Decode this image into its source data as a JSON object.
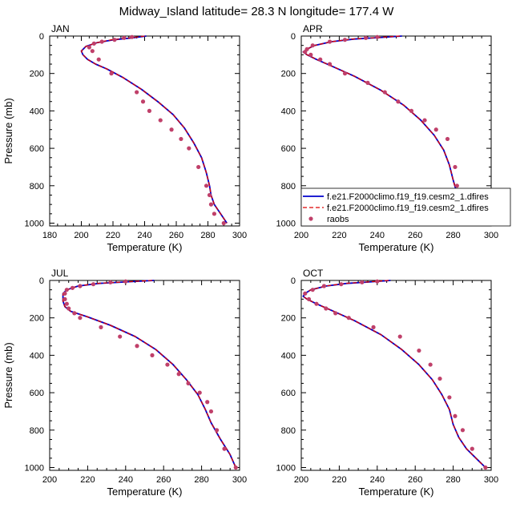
{
  "title": "Midway_Island  latitude= 28.3 N longitude= 177.4 W",
  "legend": {
    "entries": [
      {
        "label": "f.e21.F2000climo.f19_f19.cesm2_1.dfires",
        "color": "#0000cc",
        "style": "solid"
      },
      {
        "label": "f.e21.F2000climo.f19_f19.cesm2_1.dfires",
        "color": "#dd0000",
        "style": "dashed"
      },
      {
        "label": "raobs",
        "color": "#c0406a",
        "style": "marker"
      }
    ]
  },
  "chart_data": [
    {
      "type": "line",
      "panel": "JAN",
      "xlabel": "Temperature (K)",
      "ylabel": "Pressure (mb)",
      "xlim": [
        180,
        300
      ],
      "ylim": [
        1015,
        0
      ],
      "xticks": [
        180,
        200,
        220,
        240,
        260,
        280,
        300
      ],
      "yticks": [
        0,
        200,
        400,
        600,
        800,
        1000
      ],
      "series": [
        {
          "name": "f.e21.F2000climo.f19_f19.cesm2_1.dfires",
          "color": "#0000cc",
          "style": "solid",
          "x": [
            241,
            232,
            220,
            210,
            203,
            200,
            201,
            204,
            209,
            216,
            226,
            238,
            249,
            258,
            265,
            271,
            276,
            279,
            281,
            282,
            284,
            288,
            292
          ],
          "y": [
            0,
            10,
            20,
            35,
            55,
            80,
            100,
            125,
            150,
            175,
            220,
            285,
            355,
            420,
            490,
            570,
            650,
            730,
            800,
            850,
            900,
            950,
            1000
          ]
        },
        {
          "name": "f.e21.F2000climo.f19_f19.cesm2_1.dfires",
          "color": "#dd0000",
          "style": "dashed",
          "x": [
            240,
            231,
            219,
            210,
            203,
            200,
            201,
            204,
            209,
            216,
            226,
            238,
            249,
            258,
            265,
            271,
            276,
            279,
            281,
            282,
            284,
            288,
            292
          ],
          "y": [
            0,
            10,
            20,
            35,
            55,
            80,
            100,
            125,
            150,
            175,
            220,
            285,
            355,
            420,
            490,
            570,
            650,
            730,
            800,
            850,
            900,
            950,
            1000
          ]
        },
        {
          "name": "raobs",
          "color": "#c0406a",
          "style": "marker",
          "x": [
            232,
            227,
            221,
            213,
            208,
            205,
            207,
            211,
            219,
            235,
            239,
            243,
            250,
            257,
            263,
            268,
            274,
            279,
            281,
            282,
            284,
            290
          ],
          "y": [
            5,
            10,
            20,
            30,
            40,
            60,
            80,
            125,
            200,
            300,
            350,
            400,
            450,
            500,
            550,
            600,
            700,
            800,
            850,
            900,
            950,
            1000
          ]
        }
      ]
    },
    {
      "type": "line",
      "panel": "APR",
      "xlabel": "Temperature (K)",
      "ylabel": "",
      "xlim": [
        200,
        300
      ],
      "ylim": [
        1015,
        0
      ],
      "xticks": [
        200,
        220,
        240,
        260,
        280,
        300
      ],
      "yticks": [
        0,
        200,
        400,
        600,
        800,
        1000
      ],
      "series": [
        {
          "name": "f.e21.F2000climo.f19_f19.cesm2_1.dfires",
          "color": "#0000cc",
          "style": "solid",
          "x": [
            253,
            241,
            228,
            216,
            207,
            203,
            201,
            203,
            208,
            216,
            228,
            242,
            254,
            263,
            270,
            275,
            278,
            280,
            282,
            284,
            288,
            292
          ],
          "y": [
            0,
            8,
            16,
            30,
            50,
            70,
            85,
            100,
            125,
            160,
            215,
            290,
            370,
            450,
            530,
            610,
            690,
            770,
            840,
            900,
            950,
            1000
          ]
        },
        {
          "name": "f.e21.F2000climo.f19_f19.cesm2_1.dfires",
          "color": "#dd0000",
          "style": "dashed",
          "x": [
            252,
            240,
            227,
            216,
            207,
            203,
            201,
            203,
            208,
            216,
            228,
            242,
            254,
            263,
            270,
            275,
            278,
            280,
            282,
            284,
            288,
            292
          ],
          "y": [
            0,
            8,
            16,
            30,
            50,
            70,
            85,
            100,
            125,
            160,
            215,
            290,
            370,
            450,
            530,
            610,
            690,
            770,
            840,
            900,
            950,
            1000
          ]
        },
        {
          "name": "raobs",
          "color": "#c0406a",
          "style": "marker",
          "x": [
            240,
            234,
            223,
            215,
            206,
            203,
            202,
            205,
            210,
            215,
            223,
            235,
            244,
            251,
            258,
            265,
            271,
            277,
            281,
            282,
            283,
            286,
            292
          ],
          "y": [
            5,
            10,
            20,
            30,
            50,
            70,
            85,
            100,
            125,
            150,
            200,
            250,
            300,
            350,
            400,
            450,
            500,
            550,
            700,
            800,
            850,
            900,
            1000
          ]
        }
      ]
    },
    {
      "type": "line",
      "panel": "JUL",
      "xlabel": "Temperature (K)",
      "ylabel": "Pressure (mb)",
      "xlim": [
        200,
        300
      ],
      "ylim": [
        1015,
        0
      ],
      "xticks": [
        200,
        220,
        240,
        260,
        280,
        300
      ],
      "yticks": [
        0,
        200,
        400,
        600,
        800,
        1000
      ],
      "series": [
        {
          "name": "f.e21.F2000climo.f19_f19.cesm2_1.dfires",
          "color": "#0000cc",
          "style": "solid",
          "x": [
            255,
            240,
            226,
            215,
            209,
            207,
            207,
            207,
            208,
            211,
            220,
            232,
            245,
            256,
            265,
            272,
            278,
            282,
            285,
            290,
            295,
            298
          ],
          "y": [
            0,
            8,
            16,
            30,
            50,
            70,
            90,
            110,
            140,
            165,
            195,
            240,
            300,
            370,
            450,
            530,
            610,
            690,
            760,
            850,
            930,
            1000
          ]
        },
        {
          "name": "f.e21.F2000climo.f19_f19.cesm2_1.dfires",
          "color": "#dd0000",
          "style": "dashed",
          "x": [
            254,
            239,
            225,
            215,
            209,
            207,
            207,
            207,
            208,
            211,
            220,
            232,
            245,
            256,
            265,
            272,
            278,
            282,
            285,
            290,
            295,
            298
          ],
          "y": [
            0,
            8,
            16,
            30,
            50,
            70,
            90,
            110,
            140,
            165,
            195,
            240,
            300,
            370,
            450,
            530,
            610,
            690,
            760,
            850,
            930,
            1000
          ]
        },
        {
          "name": "raobs",
          "color": "#c0406a",
          "style": "marker",
          "x": [
            240,
            232,
            223,
            216,
            212,
            209,
            208,
            208,
            209,
            210,
            213,
            216,
            227,
            237,
            246,
            254,
            262,
            268,
            273,
            279,
            283,
            285,
            288,
            292,
            298
          ],
          "y": [
            5,
            10,
            20,
            30,
            40,
            50,
            70,
            100,
            125,
            150,
            175,
            200,
            250,
            300,
            350,
            400,
            450,
            500,
            550,
            600,
            650,
            700,
            800,
            900,
            1000
          ]
        }
      ]
    },
    {
      "type": "line",
      "panel": "OCT",
      "xlabel": "Temperature (K)",
      "ylabel": "",
      "xlim": [
        200,
        300
      ],
      "ylim": [
        1015,
        0
      ],
      "xticks": [
        200,
        220,
        240,
        260,
        280,
        300
      ],
      "yticks": [
        0,
        200,
        400,
        600,
        800,
        1000
      ],
      "series": [
        {
          "name": "f.e21.F2000climo.f19_f19.cesm2_1.dfires",
          "color": "#0000cc",
          "style": "solid",
          "x": [
            247,
            236,
            224,
            213,
            205,
            202,
            201,
            203,
            208,
            216,
            228,
            242,
            253,
            262,
            269,
            274,
            278,
            280,
            283,
            287,
            292,
            297
          ],
          "y": [
            0,
            8,
            16,
            30,
            50,
            70,
            85,
            100,
            125,
            160,
            215,
            290,
            370,
            450,
            530,
            610,
            690,
            770,
            840,
            900,
            950,
            1000
          ]
        },
        {
          "name": "f.e21.F2000climo.f19_f19.cesm2_1.dfires",
          "color": "#dd0000",
          "style": "dashed",
          "x": [
            246,
            235,
            223,
            213,
            205,
            202,
            201,
            203,
            208,
            216,
            228,
            242,
            253,
            262,
            269,
            274,
            278,
            280,
            283,
            287,
            292,
            297
          ],
          "y": [
            0,
            8,
            16,
            30,
            50,
            70,
            85,
            100,
            125,
            160,
            215,
            290,
            370,
            450,
            530,
            610,
            690,
            770,
            840,
            900,
            950,
            1000
          ]
        },
        {
          "name": "raobs",
          "color": "#c0406a",
          "style": "marker",
          "x": [
            240,
            232,
            221,
            212,
            206,
            202,
            204,
            208,
            213,
            218,
            225,
            238,
            252,
            262,
            268,
            273,
            278,
            281,
            285,
            290,
            297
          ],
          "y": [
            5,
            10,
            20,
            30,
            50,
            70,
            100,
            125,
            150,
            175,
            200,
            250,
            300,
            375,
            450,
            525,
            625,
            725,
            800,
            900,
            1000
          ]
        }
      ]
    }
  ]
}
